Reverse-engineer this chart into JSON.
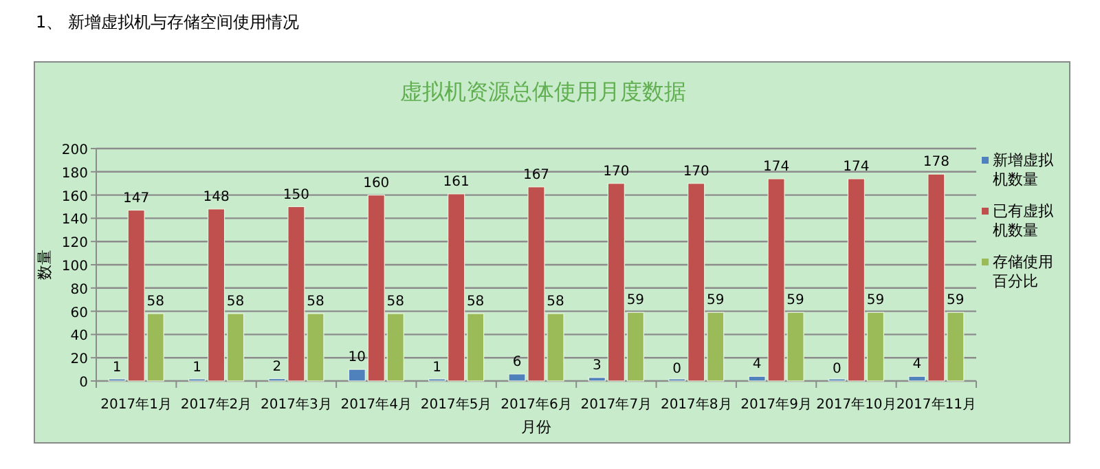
{
  "chart_data": {
    "type": "bar",
    "title": "虚拟机资源总体使用月度数据",
    "annotations": [
      "1、 新增虚拟机与存储空间使用情况"
    ],
    "xlabel": "月份",
    "ylabel": "数量",
    "categories": [
      "2017年1月",
      "2017年2月",
      "2017年3月",
      "2017年4月",
      "2017年5月",
      "2017年6月",
      "2017年7月",
      "2017年8月",
      "2017年9月",
      "2017年10月",
      "2017年11月"
    ],
    "series": [
      {
        "name": "新增虚拟机数量",
        "color": "#4f81bd",
        "values": [
          1,
          1,
          2,
          10,
          1,
          6,
          3,
          0,
          4,
          0,
          4
        ]
      },
      {
        "name": "已有虚拟机数量",
        "color": "#c0504d",
        "values": [
          147,
          148,
          150,
          160,
          161,
          167,
          170,
          170,
          174,
          174,
          178
        ]
      },
      {
        "name": "存储使用百分比",
        "color": "#9bbb59",
        "values": [
          58,
          58,
          58,
          58,
          58,
          58,
          59,
          59,
          59,
          59,
          59
        ]
      }
    ],
    "ylim": [
      0,
      200
    ],
    "yticks": [
      0,
      20,
      40,
      60,
      80,
      100,
      120,
      140,
      160,
      180,
      200
    ],
    "grid": "y",
    "legend": "right",
    "data_labels": true
  }
}
